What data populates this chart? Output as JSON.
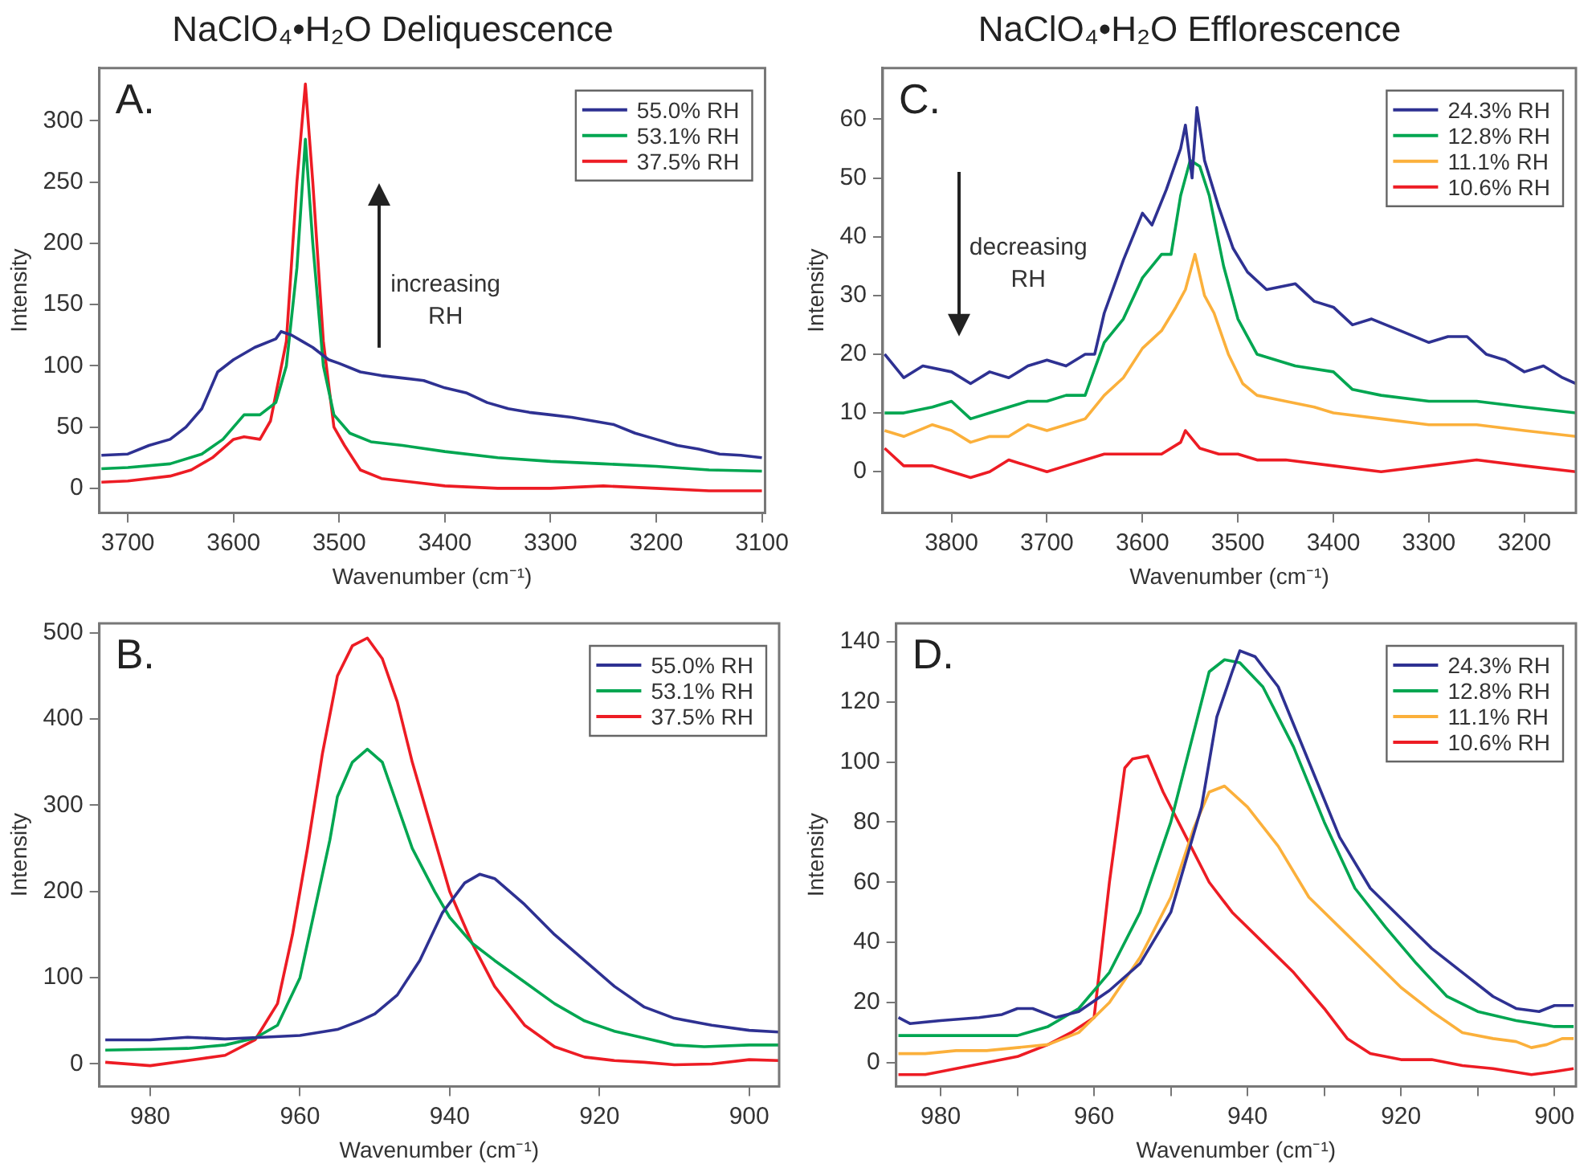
{
  "chart_data": [
    {
      "type": "line",
      "title": "NaClO₄•H₂O Deliquescence",
      "xlabel": "Wavenumber (cm⁻¹)",
      "ylabel": "Intensity",
      "annotations": [
        "A.",
        "increasing RH"
      ],
      "legend": "top right",
      "grid": false,
      "xlim": [
        3727,
        3097
      ],
      "xticks": [
        3700,
        3600,
        3500,
        3400,
        3300,
        3200,
        3100
      ],
      "ylim": [
        -20,
        343
      ],
      "yticks": [
        0,
        50,
        100,
        150,
        200,
        250,
        300
      ],
      "series": [
        {
          "name": "55.0% RH",
          "color": "#2e3192",
          "x": [
            3725,
            3700,
            3680,
            3660,
            3645,
            3630,
            3615,
            3600,
            3580,
            3560,
            3555,
            3545,
            3535,
            3525,
            3510,
            3500,
            3480,
            3460,
            3440,
            3420,
            3400,
            3380,
            3360,
            3340,
            3320,
            3300,
            3280,
            3260,
            3240,
            3220,
            3200,
            3180,
            3160,
            3140,
            3120,
            3100
          ],
          "values": [
            27,
            28,
            35,
            40,
            50,
            65,
            95,
            105,
            115,
            122,
            128,
            125,
            120,
            115,
            105,
            102,
            95,
            92,
            90,
            88,
            82,
            78,
            70,
            65,
            62,
            60,
            58,
            55,
            52,
            45,
            40,
            35,
            32,
            28,
            27,
            25
          ]
        },
        {
          "name": "53.1% RH",
          "color": "#00a651",
          "x": [
            3725,
            3700,
            3660,
            3630,
            3610,
            3590,
            3575,
            3560,
            3550,
            3540,
            3532,
            3525,
            3515,
            3505,
            3490,
            3470,
            3440,
            3400,
            3350,
            3300,
            3250,
            3200,
            3150,
            3100
          ],
          "values": [
            16,
            17,
            20,
            28,
            40,
            60,
            60,
            70,
            100,
            180,
            285,
            200,
            100,
            60,
            45,
            38,
            35,
            30,
            25,
            22,
            20,
            18,
            15,
            14
          ]
        },
        {
          "name": "37.5% RH",
          "color": "#ed1c24",
          "x": [
            3725,
            3700,
            3660,
            3640,
            3620,
            3600,
            3590,
            3575,
            3565,
            3550,
            3540,
            3532,
            3525,
            3515,
            3505,
            3495,
            3480,
            3460,
            3400,
            3350,
            3300,
            3250,
            3200,
            3150,
            3100
          ],
          "values": [
            5,
            6,
            10,
            15,
            25,
            40,
            42,
            40,
            55,
            120,
            250,
            330,
            250,
            120,
            50,
            35,
            15,
            8,
            2,
            0,
            0,
            2,
            0,
            -2,
            -2
          ]
        }
      ]
    },
    {
      "type": "line",
      "title": "NaClO₄•H₂O Efflorescence",
      "xlabel": "Wavenumber (cm⁻¹)",
      "ylabel": "Intensity",
      "annotations": [
        "C.",
        "decreasing RH"
      ],
      "legend": "top right",
      "grid": false,
      "xlim": [
        3872,
        3146
      ],
      "xticks": [
        3800,
        3700,
        3600,
        3500,
        3400,
        3300,
        3200
      ],
      "ylim": [
        -7,
        68.7
      ],
      "yticks": [
        0,
        10,
        20,
        30,
        40,
        50,
        60
      ],
      "series": [
        {
          "name": "24.3% RH",
          "color": "#2e3192",
          "x": [
            3870,
            3850,
            3830,
            3800,
            3780,
            3760,
            3740,
            3720,
            3700,
            3680,
            3660,
            3650,
            3640,
            3620,
            3600,
            3590,
            3575,
            3560,
            3555,
            3548,
            3543,
            3535,
            3520,
            3505,
            3490,
            3470,
            3440,
            3420,
            3400,
            3380,
            3360,
            3330,
            3300,
            3280,
            3260,
            3240,
            3220,
            3200,
            3180,
            3160,
            3146
          ],
          "values": [
            20,
            16,
            18,
            17,
            15,
            17,
            16,
            18,
            19,
            18,
            20,
            20,
            27,
            36,
            44,
            42,
            48,
            55,
            59,
            50,
            62,
            53,
            45,
            38,
            34,
            31,
            32,
            29,
            28,
            25,
            26,
            24,
            22,
            23,
            23,
            20,
            19,
            17,
            18,
            16,
            15
          ]
        },
        {
          "name": "12.8% RH",
          "color": "#00a651",
          "x": [
            3870,
            3850,
            3820,
            3800,
            3780,
            3760,
            3740,
            3720,
            3700,
            3680,
            3660,
            3640,
            3620,
            3600,
            3580,
            3570,
            3560,
            3550,
            3540,
            3530,
            3515,
            3500,
            3480,
            3460,
            3440,
            3400,
            3380,
            3350,
            3300,
            3250,
            3200,
            3146
          ],
          "values": [
            10,
            10,
            11,
            12,
            9,
            10,
            11,
            12,
            12,
            13,
            13,
            22,
            26,
            33,
            37,
            37,
            47,
            53,
            52,
            47,
            35,
            26,
            20,
            19,
            18,
            17,
            14,
            13,
            12,
            12,
            11,
            10
          ]
        },
        {
          "name": "11.1% RH",
          "color": "#fbb03b",
          "x": [
            3870,
            3850,
            3820,
            3800,
            3780,
            3760,
            3740,
            3720,
            3700,
            3680,
            3660,
            3640,
            3620,
            3600,
            3580,
            3565,
            3555,
            3545,
            3535,
            3525,
            3510,
            3495,
            3480,
            3450,
            3420,
            3400,
            3350,
            3300,
            3250,
            3200,
            3146
          ],
          "values": [
            7,
            6,
            8,
            7,
            5,
            6,
            6,
            8,
            7,
            8,
            9,
            13,
            16,
            21,
            24,
            28,
            31,
            37,
            30,
            27,
            20,
            15,
            13,
            12,
            11,
            10,
            9,
            8,
            8,
            7,
            6
          ]
        },
        {
          "name": "10.6% RH",
          "color": "#ed1c24",
          "x": [
            3870,
            3850,
            3820,
            3800,
            3780,
            3760,
            3740,
            3720,
            3700,
            3680,
            3660,
            3640,
            3600,
            3580,
            3560,
            3555,
            3540,
            3520,
            3500,
            3480,
            3450,
            3400,
            3350,
            3300,
            3250,
            3200,
            3146
          ],
          "values": [
            4,
            1,
            1,
            0,
            -1,
            0,
            2,
            1,
            0,
            1,
            2,
            3,
            3,
            3,
            5,
            7,
            4,
            3,
            3,
            2,
            2,
            1,
            0,
            1,
            2,
            1,
            0
          ]
        }
      ]
    },
    {
      "type": "line",
      "xlabel": "Wavenumber (cm⁻¹)",
      "ylabel": "Intensity",
      "annotations": [
        "B."
      ],
      "legend": "top right",
      "grid": false,
      "xlim": [
        986.8,
        896
      ],
      "xticks": [
        980,
        960,
        940,
        920,
        900
      ],
      "ylim": [
        -26,
        511
      ],
      "yticks": [
        0,
        100,
        200,
        300,
        400,
        500
      ],
      "series": [
        {
          "name": "55.0% RH",
          "color": "#2e3192",
          "x": [
            986,
            980,
            975,
            970,
            965,
            960,
            955,
            952,
            950,
            947,
            944,
            941,
            938,
            936,
            934,
            930,
            926,
            922,
            918,
            914,
            910,
            905,
            900,
            896
          ],
          "values": [
            28,
            28,
            31,
            29,
            31,
            33,
            40,
            50,
            58,
            80,
            120,
            175,
            210,
            220,
            215,
            185,
            150,
            120,
            90,
            66,
            53,
            45,
            39,
            37
          ]
        },
        {
          "name": "53.1% RH",
          "color": "#00a651",
          "x": [
            986,
            980,
            975,
            970,
            966,
            963,
            960,
            958,
            956,
            955,
            953,
            951,
            949,
            947,
            945,
            942,
            940,
            937,
            934,
            930,
            926,
            922,
            918,
            914,
            910,
            906,
            900,
            896
          ],
          "values": [
            16,
            17,
            18,
            22,
            30,
            45,
            100,
            180,
            260,
            310,
            350,
            365,
            350,
            300,
            250,
            200,
            170,
            140,
            120,
            95,
            70,
            50,
            38,
            30,
            22,
            20,
            22,
            22
          ]
        },
        {
          "name": "37.5% RH",
          "color": "#ed1c24",
          "x": [
            986,
            980,
            975,
            970,
            966,
            963,
            961,
            959,
            957,
            955,
            953,
            951,
            949,
            947,
            945,
            942,
            940,
            937,
            934,
            930,
            926,
            922,
            918,
            914,
            910,
            905,
            900,
            896
          ],
          "values": [
            2,
            -2,
            4,
            10,
            28,
            70,
            150,
            250,
            360,
            450,
            485,
            494,
            470,
            420,
            350,
            260,
            200,
            140,
            90,
            45,
            20,
            8,
            4,
            2,
            -1,
            0,
            5,
            4
          ]
        }
      ]
    },
    {
      "type": "line",
      "xlabel": "Wavenumber (cm⁻¹)",
      "ylabel": "Intensity",
      "annotations": [
        "D."
      ],
      "legend": "top right",
      "grid": false,
      "xlim": [
        985.8,
        897.2
      ],
      "xticks": [
        980,
        {
          "value": 970,
          "label": null
        },
        960,
        {
          "value": 950,
          "label": null
        },
        940,
        {
          "value": 930,
          "label": null
        },
        920,
        {
          "value": 910,
          "label": null
        },
        900
      ],
      "ylim": [
        -7.9,
        146.1
      ],
      "yticks": [
        0,
        20,
        40,
        60,
        80,
        100,
        120,
        140
      ],
      "series": [
        {
          "name": "24.3% RH",
          "color": "#2e3192",
          "x": [
            985.5,
            984,
            980,
            975,
            972,
            970,
            968,
            965,
            962,
            958,
            954,
            950,
            946,
            944,
            942,
            941,
            939,
            936,
            932,
            928,
            924,
            920,
            916,
            912,
            908,
            905,
            902,
            900,
            897.5
          ],
          "values": [
            15,
            13,
            14,
            15,
            16,
            18,
            18,
            15,
            17,
            24,
            33,
            50,
            85,
            115,
            130,
            137,
            135,
            125,
            100,
            75,
            58,
            48,
            38,
            30,
            22,
            18,
            17,
            19,
            19
          ]
        },
        {
          "name": "12.8% RH",
          "color": "#00a651",
          "x": [
            985.5,
            980,
            975,
            970,
            966,
            962,
            958,
            954,
            950,
            947,
            945,
            943,
            941,
            938,
            934,
            930,
            926,
            922,
            918,
            914,
            910,
            905,
            900,
            897.5
          ],
          "values": [
            9,
            9,
            9,
            9,
            12,
            18,
            30,
            50,
            80,
            110,
            130,
            134,
            133,
            125,
            105,
            80,
            58,
            45,
            33,
            22,
            17,
            14,
            12,
            12
          ]
        },
        {
          "name": "11.1% RH",
          "color": "#fbb03b",
          "x": [
            985.5,
            982,
            978,
            974,
            970,
            966,
            962,
            958,
            954,
            950,
            947,
            945,
            943,
            940,
            936,
            932,
            928,
            924,
            920,
            916,
            912,
            908,
            905,
            903,
            901,
            899,
            897.5
          ],
          "values": [
            3,
            3,
            4,
            4,
            5,
            6,
            10,
            20,
            35,
            55,
            78,
            90,
            92,
            85,
            72,
            55,
            45,
            35,
            25,
            17,
            10,
            8,
            7,
            5,
            6,
            8,
            8
          ]
        },
        {
          "name": "10.6% RH",
          "color": "#ed1c24",
          "x": [
            985.5,
            982,
            978,
            974,
            970,
            966,
            963,
            960,
            958,
            956,
            955,
            953,
            951,
            948,
            945,
            942,
            938,
            934,
            930,
            927,
            924,
            920,
            916,
            912,
            908,
            903,
            900,
            897.5
          ],
          "values": [
            -4,
            -4,
            -2,
            0,
            2,
            6,
            10,
            15,
            60,
            98,
            101,
            102,
            90,
            75,
            60,
            50,
            40,
            30,
            18,
            8,
            3,
            1,
            1,
            -1,
            -2,
            -4,
            -3,
            -2
          ]
        }
      ]
    }
  ]
}
